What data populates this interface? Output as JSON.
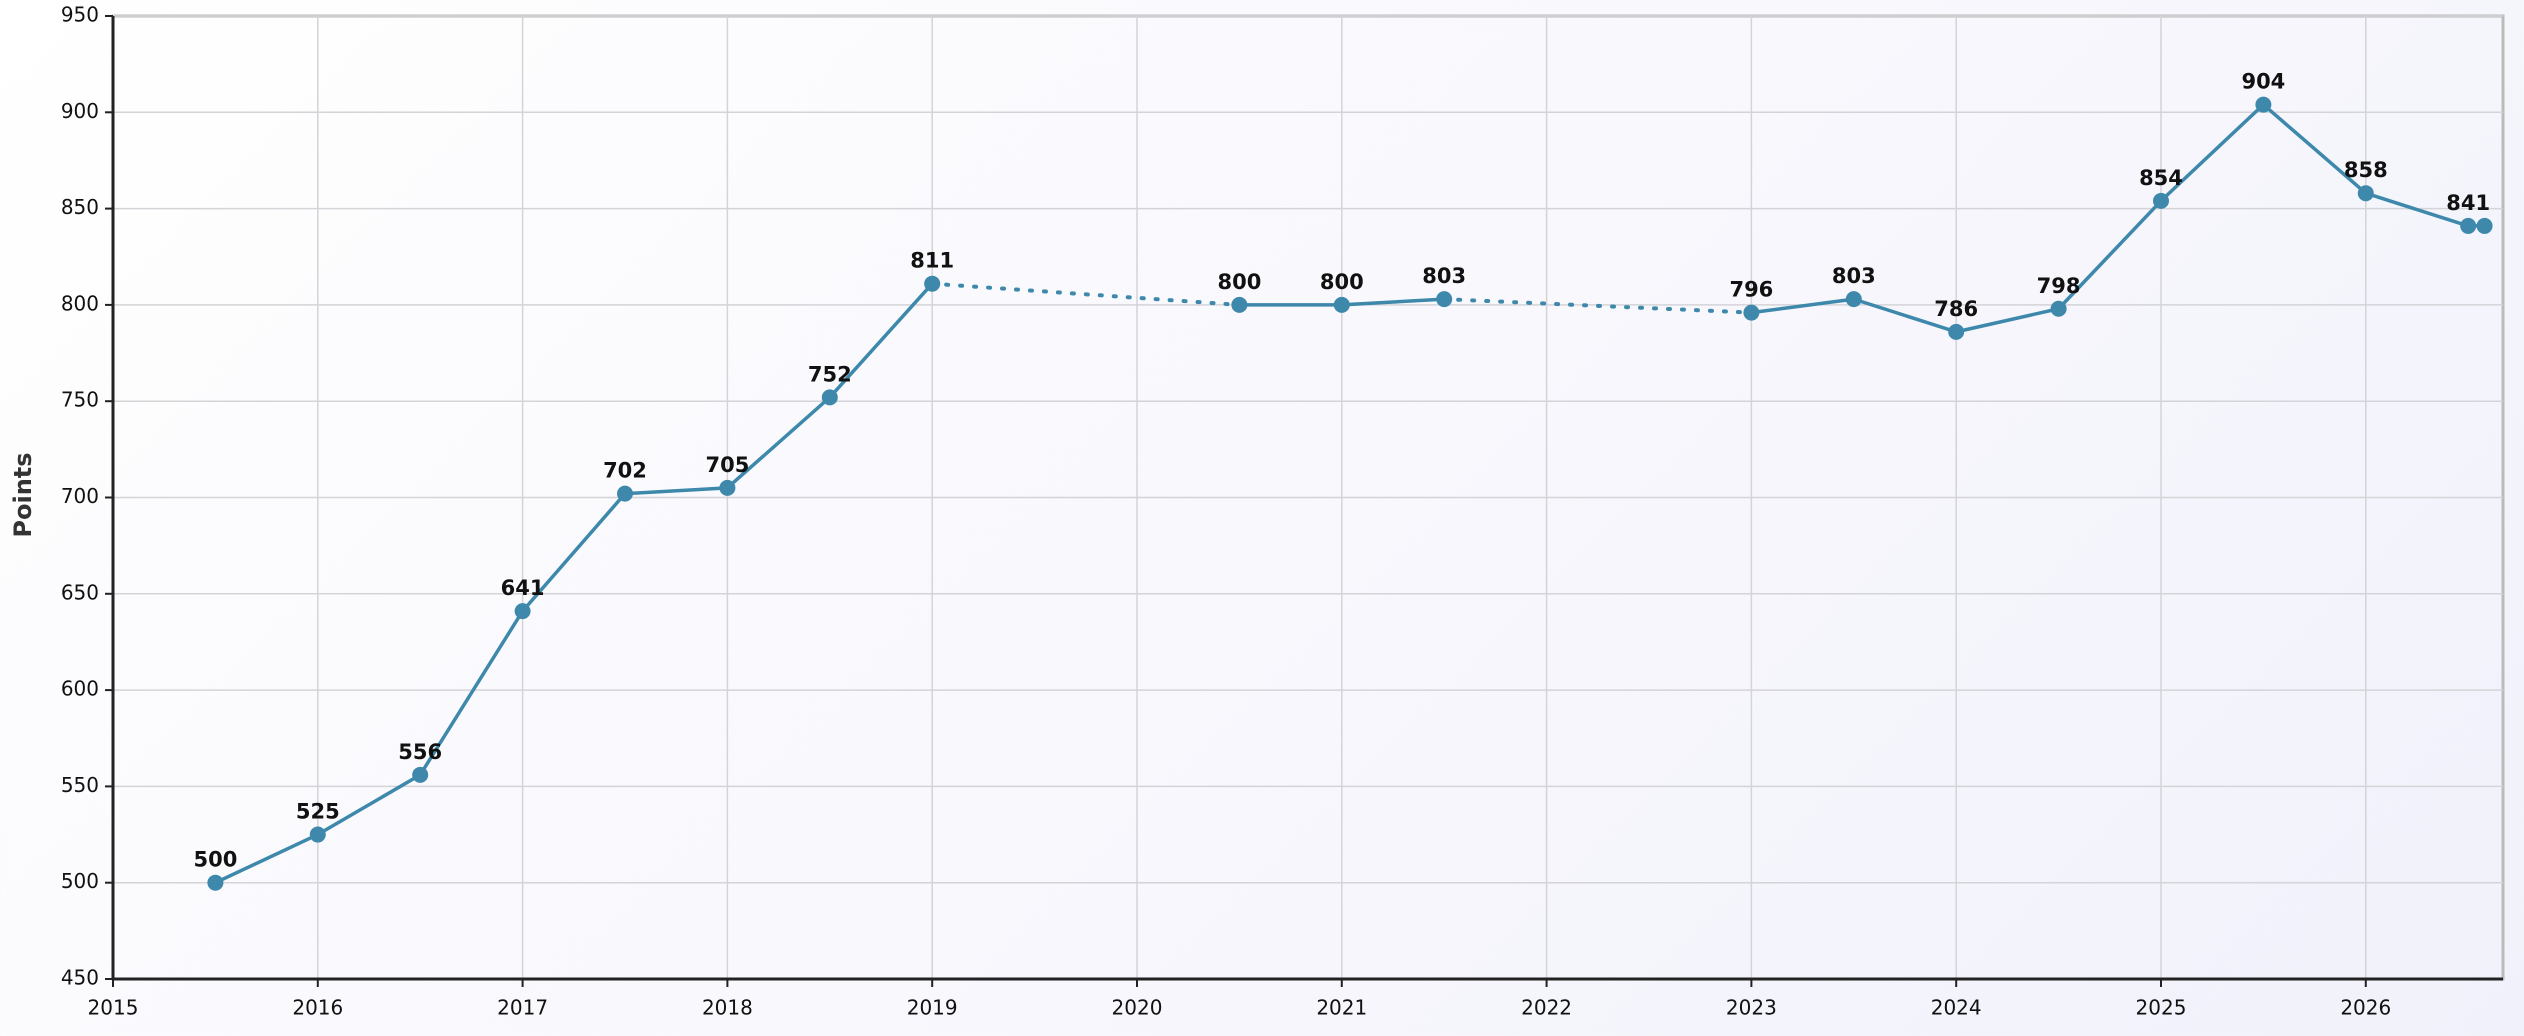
{
  "chart_data": {
    "type": "line",
    "ylabel": "Points",
    "x": [
      2015.5,
      2016,
      2016.5,
      2017,
      2017.5,
      2018,
      2018.5,
      2019,
      2020.5,
      2021,
      2021.5,
      2023,
      2023.5,
      2024,
      2024.5,
      2025,
      2025.5,
      2026,
      2026.5,
      2026.58
    ],
    "series": [
      {
        "color": "#3d88ab",
        "values": [
          500,
          525,
          556,
          641,
          702,
          705,
          752,
          811,
          800,
          800,
          803,
          796,
          803,
          786,
          798,
          854,
          904,
          858,
          841,
          841
        ],
        "value_labels": [
          "500",
          "525",
          "556",
          "641",
          "702",
          "705",
          "752",
          "811",
          "800",
          "800",
          "803",
          "796",
          "803",
          "786",
          "798",
          "854",
          "904",
          "858",
          "841",
          null
        ]
      }
    ],
    "xlim": [
      2015,
      2026.67
    ],
    "xticks": [
      2015,
      2016,
      2017,
      2018,
      2019,
      2020,
      2021,
      2022,
      2023,
      2024,
      2025,
      2026
    ],
    "ylim": [
      450,
      950
    ],
    "yticks": [
      450,
      500,
      550,
      600,
      650,
      700,
      750,
      800,
      850,
      900,
      950
    ],
    "grid": true
  }
}
